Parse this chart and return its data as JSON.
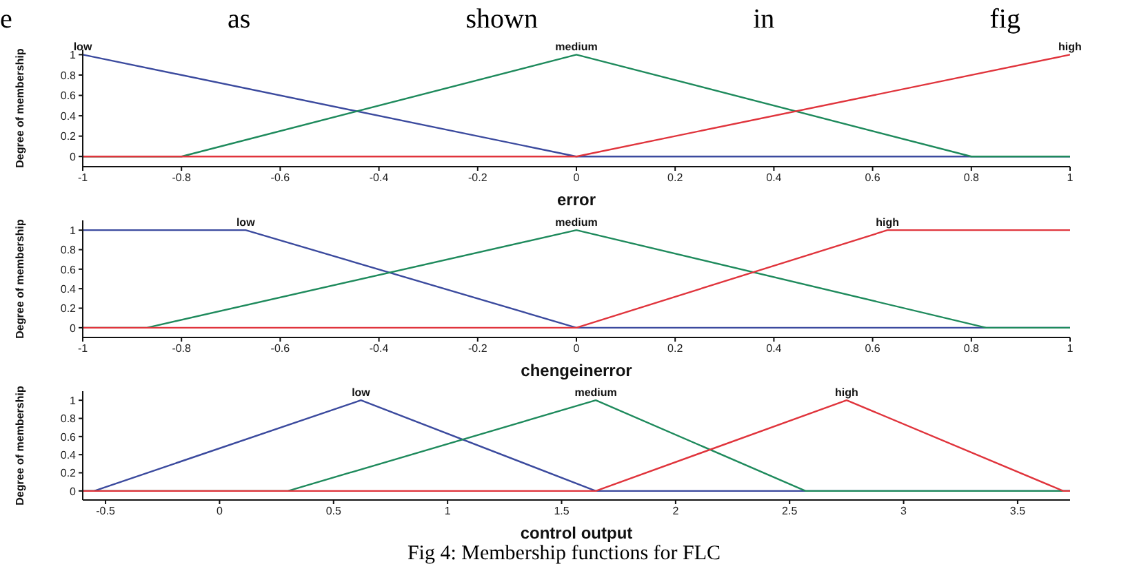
{
  "chart_data": [
    {
      "type": "line",
      "annotations": [
        "e as shown in fig"
      ],
      "xlabel": "error",
      "ylabel": "Degree of membership",
      "xlim": [
        -1,
        1
      ],
      "xticks": [
        -1,
        -0.8,
        -0.6,
        -0.4,
        -0.2,
        0,
        0.2,
        0.4,
        0.6,
        0.8,
        1
      ],
      "ylim": [
        -0.1,
        1.05
      ],
      "yticks": [
        0,
        0.2,
        0.4,
        0.6,
        0.8,
        1
      ],
      "grid": false,
      "legend": false,
      "marker": "none",
      "line_style": "solid",
      "series": [
        {
          "name": "low",
          "color": "#3b4a9e",
          "x": [
            -1,
            0,
            1
          ],
          "values": [
            1,
            0,
            0
          ]
        },
        {
          "name": "medium",
          "color": "#1e8a5c",
          "x": [
            -1,
            -0.8,
            0,
            0.8,
            1
          ],
          "values": [
            0,
            0,
            1,
            0,
            0
          ]
        },
        {
          "name": "high",
          "color": "#e0343c",
          "x": [
            -1,
            0,
            1
          ],
          "values": [
            0,
            0,
            1
          ]
        }
      ]
    },
    {
      "type": "line",
      "xlabel": "chengeinerror",
      "ylabel": "Degree of membership",
      "xlim": [
        -1,
        1
      ],
      "xticks": [
        -1,
        -0.8,
        -0.6,
        -0.4,
        -0.2,
        0,
        0.2,
        0.4,
        0.6,
        0.8,
        1
      ],
      "ylim": [
        -0.1,
        1.1
      ],
      "yticks": [
        0,
        0.2,
        0.4,
        0.6,
        0.8,
        1
      ],
      "grid": false,
      "legend": false,
      "marker": "none",
      "line_style": "solid",
      "series": [
        {
          "name": "low",
          "color": "#3b4a9e",
          "x": [
            -1,
            -0.67,
            0,
            1
          ],
          "values": [
            1,
            1,
            0,
            0
          ]
        },
        {
          "name": "medium",
          "color": "#1e8a5c",
          "x": [
            -1,
            -0.87,
            0,
            0.83,
            1
          ],
          "values": [
            0,
            0,
            1,
            0,
            0
          ]
        },
        {
          "name": "high",
          "color": "#e0343c",
          "x": [
            -1,
            0,
            0.63,
            1
          ],
          "values": [
            0,
            0,
            1,
            1
          ]
        }
      ]
    },
    {
      "type": "line",
      "xlabel": "control output",
      "ylabel": "Degree of membership",
      "annotations": [
        "Fig 4: Membership functions for FLC"
      ],
      "xlim": [
        -0.6,
        3.73
      ],
      "xticks": [
        -0.5,
        0,
        0.5,
        1,
        1.5,
        2,
        2.5,
        3,
        3.5
      ],
      "ylim": [
        -0.1,
        1.1
      ],
      "yticks": [
        0,
        0.2,
        0.4,
        0.6,
        0.8,
        1
      ],
      "grid": false,
      "legend": false,
      "marker": "none",
      "line_style": "solid",
      "series": [
        {
          "name": "low",
          "color": "#3b4a9e",
          "x": [
            -0.6,
            -0.55,
            0.62,
            1.65,
            3.73
          ],
          "values": [
            0,
            0,
            1,
            0,
            0
          ]
        },
        {
          "name": "medium",
          "color": "#1e8a5c",
          "x": [
            -0.6,
            0.3,
            1.65,
            2.57,
            3.73
          ],
          "values": [
            0,
            0,
            1,
            0,
            0
          ]
        },
        {
          "name": "high",
          "color": "#e0343c",
          "x": [
            -0.6,
            1.65,
            2.75,
            3.7,
            3.73
          ],
          "values": [
            0,
            0,
            1,
            0,
            0
          ]
        }
      ]
    }
  ]
}
